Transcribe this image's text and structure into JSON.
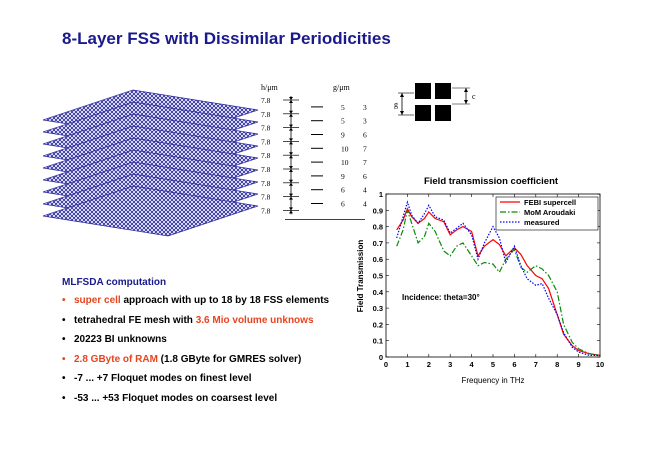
{
  "slide": {
    "title": "8-Layer FSS with Dissimilar Periodicities",
    "bullet_marker": "•",
    "accent_color": "#e8431f",
    "title_color": "#1a1a8c"
  },
  "schematic": {
    "h_header": "h/μm",
    "g_header": "g/μm",
    "h_values": [
      "7.8",
      "7.8",
      "7.8",
      "7.8",
      "7.8",
      "7.8",
      "7.8",
      "7.8",
      "7.8"
    ],
    "g_values": [
      "5",
      "5",
      "9",
      "10",
      "10",
      "9",
      "6",
      "6"
    ],
    "c_values": [
      "3",
      "3",
      "6",
      "7",
      "7",
      "6",
      "4",
      "4"
    ],
    "g_label": "g",
    "c_label": "c"
  },
  "mlfsda": {
    "heading": "MLFSDA computation",
    "bullets": [
      {
        "hl": "super cell",
        "rest": " approach with up to 18 by 18 FSS elements"
      },
      {
        "pre": "tetrahedral FE mesh with ",
        "hl": "3.6 Mio volume unknows"
      },
      {
        "pre": "20223 BI unknowns"
      },
      {
        "hl": "2.8 GByte of RAM",
        "rest": " (1.8 GByte for GMRES solver)"
      },
      {
        "pre": "-7 ... +7 Floquet modes on finest level"
      },
      {
        "pre": "-53 ... +53 Floquet modes on coarsest level"
      }
    ]
  },
  "chart_data": {
    "type": "line",
    "title": "Field transmission coefficient",
    "xlabel": "Frequency in THz",
    "ylabel": "Field Transmission",
    "xlim": [
      0,
      10
    ],
    "ylim": [
      0,
      1
    ],
    "xticks": [
      "0",
      "1",
      "2",
      "3",
      "4",
      "5",
      "6",
      "7",
      "8",
      "9",
      "10"
    ],
    "yticks": [
      "0",
      "0.1",
      "0.2",
      "0.3",
      "0.4",
      "0.5",
      "0.6",
      "0.7",
      "0.8",
      "0.9",
      "1"
    ],
    "annotation": "Incidence: theta=30°",
    "legend_position": "top-right",
    "series": [
      {
        "name": "FEBI supercell",
        "color": "#ff0000",
        "style": "solid",
        "x": [
          0.5,
          0.8,
          1.0,
          1.2,
          1.5,
          1.8,
          2.0,
          2.3,
          2.7,
          3.0,
          3.3,
          3.6,
          4.0,
          4.3,
          4.6,
          5.0,
          5.3,
          5.6,
          6.0,
          6.3,
          6.6,
          7.0,
          7.3,
          7.6,
          8.0,
          8.3,
          8.7,
          9.0,
          9.5,
          10.0
        ],
        "y": [
          0.78,
          0.84,
          0.91,
          0.86,
          0.82,
          0.85,
          0.89,
          0.85,
          0.83,
          0.75,
          0.78,
          0.8,
          0.77,
          0.62,
          0.68,
          0.72,
          0.69,
          0.62,
          0.67,
          0.63,
          0.56,
          0.5,
          0.48,
          0.42,
          0.26,
          0.14,
          0.07,
          0.04,
          0.02,
          0.01
        ]
      },
      {
        "name": "MoM Aroudaki",
        "color": "#0a8a0a",
        "style": "dashdot",
        "x": [
          0.5,
          0.8,
          1.0,
          1.2,
          1.5,
          1.8,
          2.0,
          2.3,
          2.7,
          3.0,
          3.3,
          3.6,
          4.0,
          4.3,
          4.6,
          5.0,
          5.3,
          5.6,
          6.0,
          6.3,
          6.6,
          7.0,
          7.3,
          7.6,
          8.0,
          8.3,
          8.7,
          9.0,
          9.5,
          10.0
        ],
        "y": [
          0.68,
          0.78,
          0.9,
          0.82,
          0.7,
          0.74,
          0.82,
          0.77,
          0.65,
          0.62,
          0.68,
          0.7,
          0.62,
          0.56,
          0.58,
          0.57,
          0.52,
          0.6,
          0.66,
          0.55,
          0.52,
          0.56,
          0.54,
          0.5,
          0.4,
          0.2,
          0.09,
          0.05,
          0.02,
          0.01
        ]
      },
      {
        "name": "measured",
        "color": "#0000ff",
        "style": "dotted",
        "x": [
          0.5,
          0.8,
          1.0,
          1.2,
          1.5,
          1.8,
          2.0,
          2.3,
          2.7,
          3.0,
          3.3,
          3.6,
          4.0,
          4.3,
          4.6,
          5.0,
          5.3,
          5.6,
          6.0,
          6.3,
          6.6,
          7.0,
          7.3,
          7.6,
          8.0,
          8.3,
          8.7,
          9.0,
          9.5,
          10.0
        ],
        "y": [
          0.73,
          0.86,
          0.95,
          0.87,
          0.82,
          0.88,
          0.93,
          0.86,
          0.84,
          0.76,
          0.79,
          0.82,
          0.75,
          0.6,
          0.7,
          0.8,
          0.73,
          0.58,
          0.68,
          0.56,
          0.48,
          0.44,
          0.45,
          0.36,
          0.26,
          0.15,
          0.06,
          0.03,
          0.01,
          0.01
        ]
      }
    ]
  }
}
